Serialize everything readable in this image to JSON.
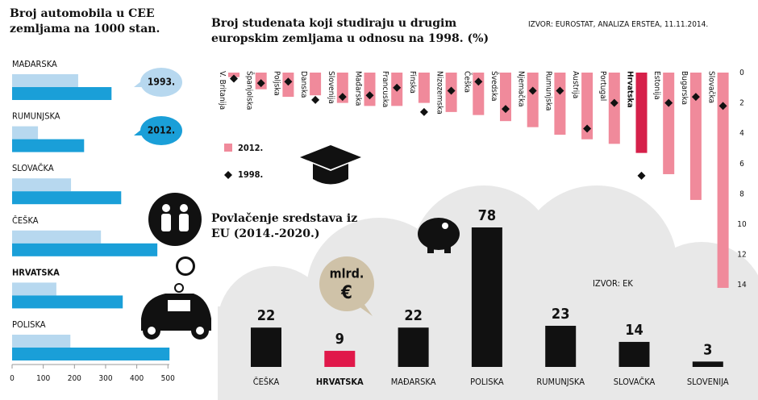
{
  "chart_data": [
    {
      "type": "hbar",
      "title": "Broj automobila u CEE zemljama na 1000 stan.",
      "categories": [
        "MAĐARSKA",
        "RUMUNJSKA",
        "SLOVAČKA",
        "ČEŠKA",
        "HRVATSKA",
        "POLISKA"
      ],
      "bold_categories": [
        4
      ],
      "series": [
        {
          "name": "1993.",
          "color": "#b7d8ef",
          "values": [
            212,
            83,
            189,
            285,
            142,
            187
          ]
        },
        {
          "name": "2012.",
          "color": "#1a9fd8",
          "values": [
            319,
            231,
            350,
            466,
            355,
            505
          ]
        }
      ],
      "xlim": [
        0,
        520
      ],
      "xticks": [
        0,
        100,
        200,
        300,
        400,
        500
      ]
    },
    {
      "type": "bar",
      "title": "Broj studenata koji studiraju u drugim europskim zemljama u odnosu na 1998. (%)",
      "source": "IZVOR: EUROSTAT, ANALIZA ERSTEA, 11.11.2014.",
      "categories": [
        "V. Britanija",
        "Španjolska",
        "Poljska",
        "Danska",
        "Slovenija",
        "Mađarska",
        "Francuska",
        "Finska",
        "Nizozemska",
        "Češka",
        "Švedska",
        "Njemačka",
        "Rumunjska",
        "Austrija",
        "Portugal",
        "Hrvatska",
        "Estonija",
        "Bugarska",
        "Slovačka"
      ],
      "bold_categories": [
        15
      ],
      "series": [
        {
          "name": "2012.",
          "color": "#f08a9b",
          "highlight_color": "#d6204a",
          "highlight": [
            15
          ],
          "values": [
            0.3,
            1.1,
            1.6,
            1.5,
            2.0,
            2.2,
            2.2,
            2.0,
            2.6,
            2.8,
            3.2,
            3.6,
            4.1,
            4.4,
            4.7,
            5.3,
            6.7,
            8.4,
            14.2
          ]
        },
        {
          "name": "1998.",
          "color": "#111111",
          "marker": "diamond",
          "values": [
            0.4,
            0.7,
            0.6,
            1.8,
            1.6,
            1.5,
            1.0,
            2.6,
            1.2,
            0.6,
            2.4,
            1.2,
            1.2,
            3.7,
            2.0,
            6.8,
            2.0,
            1.6,
            2.2
          ]
        }
      ],
      "ylim": [
        0,
        15
      ],
      "yticks": [
        0,
        2,
        4,
        6,
        8,
        10,
        12,
        14
      ],
      "y_inverted": true
    },
    {
      "type": "bar",
      "title": "Povlačenje sredstava iz EU (2014.-2020.)",
      "source": "IZVOR: EK",
      "unit": "mlrd.",
      "currency": "€",
      "categories": [
        "ČEŠKA",
        "HRVATSKA",
        "MAĐARSKA",
        "POLISKA",
        "RUMUNJSKA",
        "SLOVAČKA",
        "SLOVENIJA"
      ],
      "bold_categories": [
        1
      ],
      "values": [
        22,
        9,
        22,
        78,
        23,
        14,
        3
      ],
      "colors": [
        "#111111",
        "#e0184a",
        "#111111",
        "#111111",
        "#111111",
        "#111111",
        "#111111"
      ],
      "ylim": [
        0,
        78
      ]
    }
  ]
}
